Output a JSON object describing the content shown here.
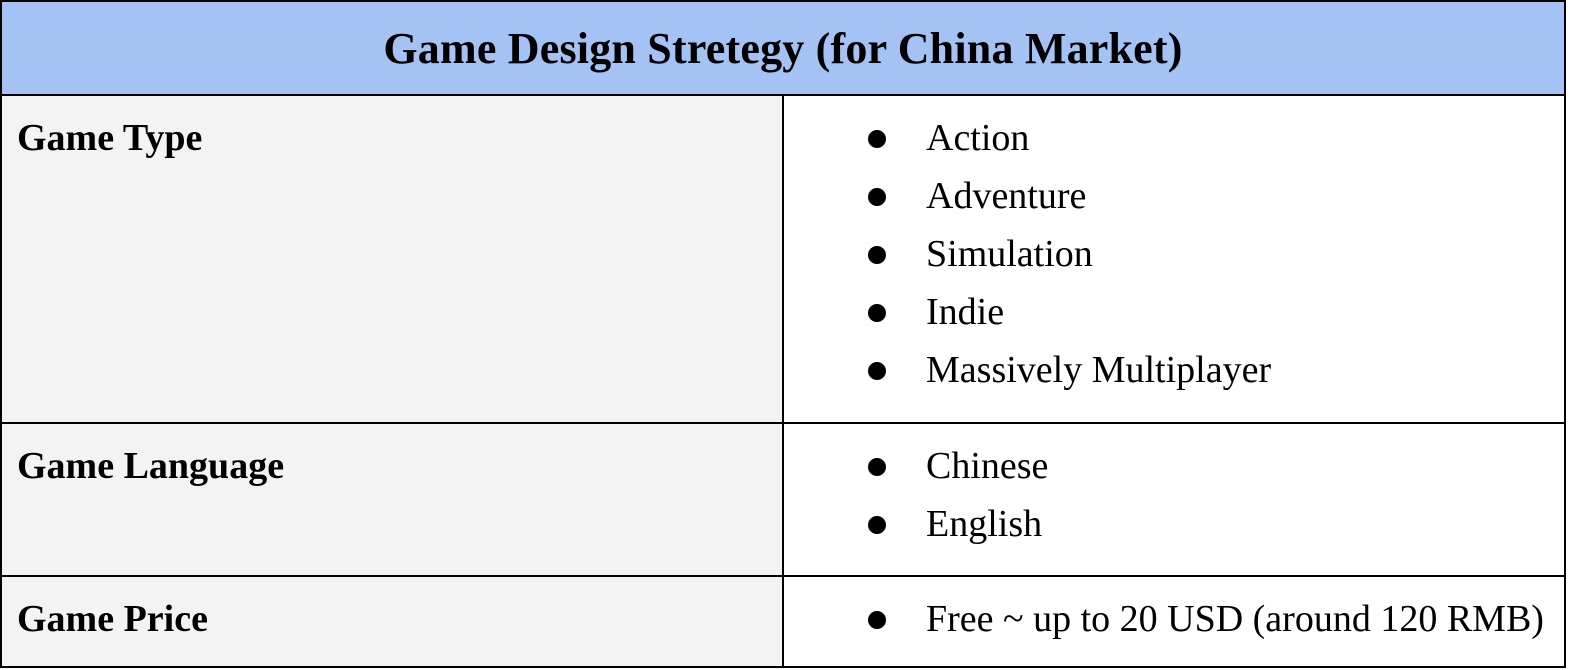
{
  "colors": {
    "header_background": "#a4c2f4",
    "label_background": "#f3f3f3",
    "value_background": "#ffffff",
    "border": "#000000"
  },
  "table": {
    "title": "Game Design Stretegy (for China Market)",
    "rows": [
      {
        "label": "Game Type",
        "items": [
          "Action",
          "Adventure",
          "Simulation",
          "Indie",
          "Massively Multiplayer"
        ]
      },
      {
        "label": "Game Language",
        "items": [
          "Chinese",
          "English"
        ]
      },
      {
        "label": "Game Price",
        "items": [
          "Free ~ up to 20 USD (around 120 RMB)"
        ]
      }
    ]
  }
}
